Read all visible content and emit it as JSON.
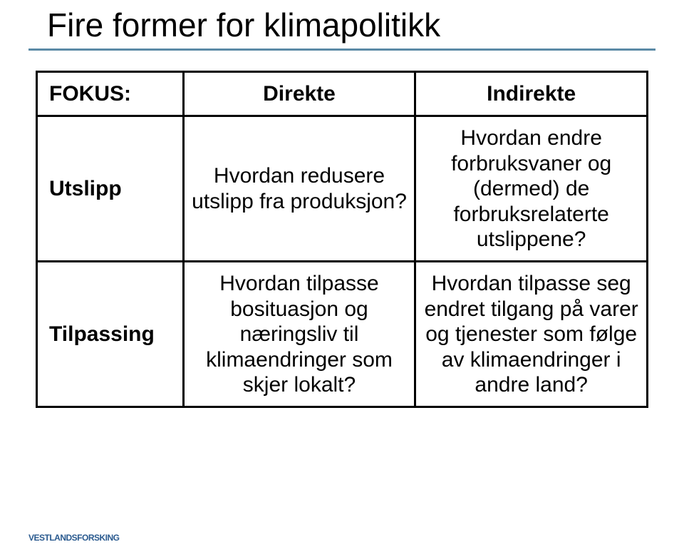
{
  "title": "Fire former for klimapolitikk",
  "title_underline_color": "#5b8aa6",
  "table": {
    "columns": [
      "FOKUS:",
      "Direkte",
      "Indirekte"
    ],
    "rows": [
      {
        "label": "Utslipp",
        "direct": "Hvordan redusere utslipp fra produksjon?",
        "indirect": "Hvordan endre forbruksvaner og (dermed) de forbruksrelaterte utslippene?"
      },
      {
        "label": "Tilpassing",
        "direct": "Hvordan tilpasse bosituasjon og næringsliv til klimaendringer som skjer lokalt?",
        "indirect": "Hvordan tilpasse seg endret tilgang på varer og tjenester som følge av klimaendringer i andre land?"
      }
    ],
    "border_color": "#000000",
    "cell_fontsize": 30,
    "header_bold": true,
    "rowlabel_bold": true
  },
  "logo": {
    "text": "VESTLANDSFORSKING",
    "color": "#2a5a8f"
  }
}
